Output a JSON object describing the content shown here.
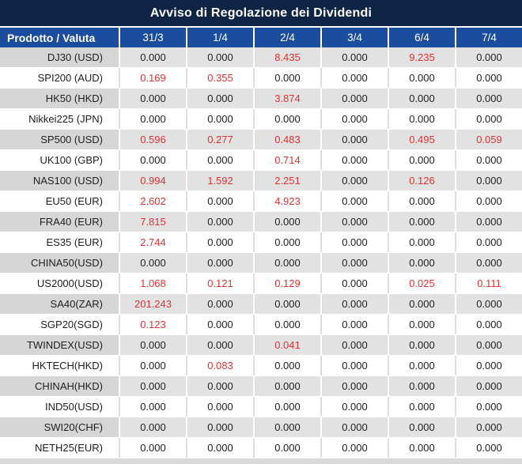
{
  "title": "Avviso di Regolazione dei Dividendi",
  "colors": {
    "title_bar_bg": "#0e2445",
    "header_bg": "#1a4d9d",
    "row_gray_bg": "#e2e2e2",
    "row_gray_product_bg": "#d6d6d6",
    "row_white_bg": "#ffffff",
    "value_red": "#e03232",
    "value_black": "#1f1f1f"
  },
  "table": {
    "header": [
      "Prodotto / Valuta",
      "31/3",
      "1/4",
      "2/4",
      "3/4",
      "6/4",
      "7/4"
    ],
    "rows": [
      {
        "product": "DJ30 (USD)",
        "values": [
          "0.000",
          "0.000",
          "8.435",
          "0.000",
          "9.235",
          "0.000"
        ],
        "red": [
          2,
          4
        ]
      },
      {
        "product": "SPI200 (AUD)",
        "values": [
          "0.169",
          "0.355",
          "0.000",
          "0.000",
          "0.000",
          "0.000"
        ],
        "red": [
          0,
          1
        ]
      },
      {
        "product": "HK50 (HKD)",
        "values": [
          "0.000",
          "0.000",
          "3.874",
          "0.000",
          "0.000",
          "0.000"
        ],
        "red": [
          2
        ]
      },
      {
        "product": "Nikkei225 (JPN)",
        "values": [
          "0.000",
          "0.000",
          "0.000",
          "0.000",
          "0.000",
          "0.000"
        ],
        "red": []
      },
      {
        "product": "SP500 (USD)",
        "values": [
          "0.596",
          "0.277",
          "0.483",
          "0.000",
          "0.495",
          "0.059"
        ],
        "red": [
          0,
          1,
          2,
          4,
          5
        ]
      },
      {
        "product": "UK100 (GBP)",
        "values": [
          "0.000",
          "0.000",
          "0.714",
          "0.000",
          "0.000",
          "0.000"
        ],
        "red": [
          2
        ]
      },
      {
        "product": "NAS100 (USD)",
        "values": [
          "0.994",
          "1.592",
          "2.251",
          "0.000",
          "0.126",
          "0.000"
        ],
        "red": [
          0,
          1,
          2,
          4
        ]
      },
      {
        "product": "EU50 (EUR)",
        "values": [
          "2.602",
          "0.000",
          "4.923",
          "0.000",
          "0.000",
          "0.000"
        ],
        "red": [
          0,
          2
        ]
      },
      {
        "product": "FRA40 (EUR)",
        "values": [
          "7.815",
          "0.000",
          "0.000",
          "0.000",
          "0.000",
          "0.000"
        ],
        "red": [
          0
        ]
      },
      {
        "product": "ES35 (EUR)",
        "values": [
          "2.744",
          "0.000",
          "0.000",
          "0.000",
          "0.000",
          "0.000"
        ],
        "red": [
          0
        ]
      },
      {
        "product": "CHINA50(USD)",
        "values": [
          "0.000",
          "0.000",
          "0.000",
          "0.000",
          "0.000",
          "0.000"
        ],
        "red": []
      },
      {
        "product": "US2000(USD)",
        "values": [
          "1.068",
          "0.121",
          "0.129",
          "0.000",
          "0.025",
          "0.111"
        ],
        "red": [
          0,
          1,
          2,
          4,
          5
        ]
      },
      {
        "product": "SA40(ZAR)",
        "values": [
          "201.243",
          "0.000",
          "0.000",
          "0.000",
          "0.000",
          "0.000"
        ],
        "red": [
          0
        ]
      },
      {
        "product": "SGP20(SGD)",
        "values": [
          "0.123",
          "0.000",
          "0.000",
          "0.000",
          "0.000",
          "0.000"
        ],
        "red": [
          0
        ]
      },
      {
        "product": "TWINDEX(USD)",
        "values": [
          "0.000",
          "0.000",
          "0.041",
          "0.000",
          "0.000",
          "0.000"
        ],
        "red": [
          2
        ]
      },
      {
        "product": "HKTECH(HKD)",
        "values": [
          "0.000",
          "0.083",
          "0.000",
          "0.000",
          "0.000",
          "0.000"
        ],
        "red": [
          1
        ]
      },
      {
        "product": "CHINAH(HKD)",
        "values": [
          "0.000",
          "0.000",
          "0.000",
          "0.000",
          "0.000",
          "0.000"
        ],
        "red": []
      },
      {
        "product": "IND50(USD)",
        "values": [
          "0.000",
          "0.000",
          "0.000",
          "0.000",
          "0.000",
          "0.000"
        ],
        "red": []
      },
      {
        "product": "SWI20(CHF)",
        "values": [
          "0.000",
          "0.000",
          "0.000",
          "0.000",
          "0.000",
          "0.000"
        ],
        "red": []
      },
      {
        "product": "NETH25(EUR)",
        "values": [
          "0.000",
          "0.000",
          "0.000",
          "0.000",
          "0.000",
          "0.000"
        ],
        "red": []
      }
    ]
  }
}
